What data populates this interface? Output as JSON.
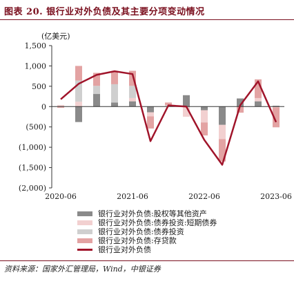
{
  "title": "图表 20. 银行业对外负债及其主要分项变动情况",
  "source": "资料来源：国家外汇管理局，Wind，中银证券",
  "colors": {
    "title": "#7a0f1e",
    "other": "#8a8a8a",
    "debt_short": "#f2d0d0",
    "debt_sec": "#cfcfcf",
    "deposits": "#e3a3a3",
    "total_line": "#a0142a"
  },
  "chart_data": {
    "type": "bar",
    "unit": "(亿美元)",
    "ylim": [
      -2000,
      1500
    ],
    "yticks": [
      1500,
      1000,
      500,
      0,
      -500,
      -1000,
      -1500,
      -2000
    ],
    "ytick_labels": [
      "1,500",
      "1,000",
      "500",
      "0",
      "(500)",
      "(1,000)",
      "(1,500)",
      "(2,000)"
    ],
    "x_tick_labels": [
      "2020-06",
      "2021-06",
      "2022-06",
      "2023-06"
    ],
    "categories": [
      "2020-06",
      "2020-09",
      "2020-12",
      "2021-03",
      "2021-06",
      "2021-09",
      "2021-12",
      "2022-03",
      "2022-06",
      "2022-09",
      "2022-12",
      "2023-03",
      "2023-06"
    ],
    "series": [
      {
        "name": "银行业对外负债:股权等其他资产",
        "kind": "bar",
        "values": [
          10,
          -380,
          310,
          100,
          130,
          -140,
          0,
          280,
          -90,
          -450,
          200,
          130,
          20
        ]
      },
      {
        "name": "银行业对外负债:债券投资:短期债券",
        "kind": "bar",
        "values": [
          30,
          120,
          0,
          0,
          80,
          -100,
          20,
          -250,
          -300,
          -350,
          0,
          80,
          -20
        ]
      },
      {
        "name": "银行业对外负债:债券投资",
        "kind": "bar",
        "values": [
          0,
          520,
          200,
          450,
          300,
          0,
          20,
          0,
          0,
          0,
          0,
          0,
          0
        ]
      },
      {
        "name": "银行业对外负债:存贷款",
        "kind": "bar",
        "values": [
          -30,
          360,
          320,
          300,
          370,
          -300,
          60,
          0,
          -320,
          -550,
          -150,
          460,
          -490
        ]
      },
      {
        "name": "银行业对外负债",
        "kind": "line",
        "values": [
          180,
          560,
          780,
          870,
          800,
          -850,
          30,
          0,
          -820,
          -1430,
          30,
          620,
          -380
        ]
      }
    ]
  }
}
